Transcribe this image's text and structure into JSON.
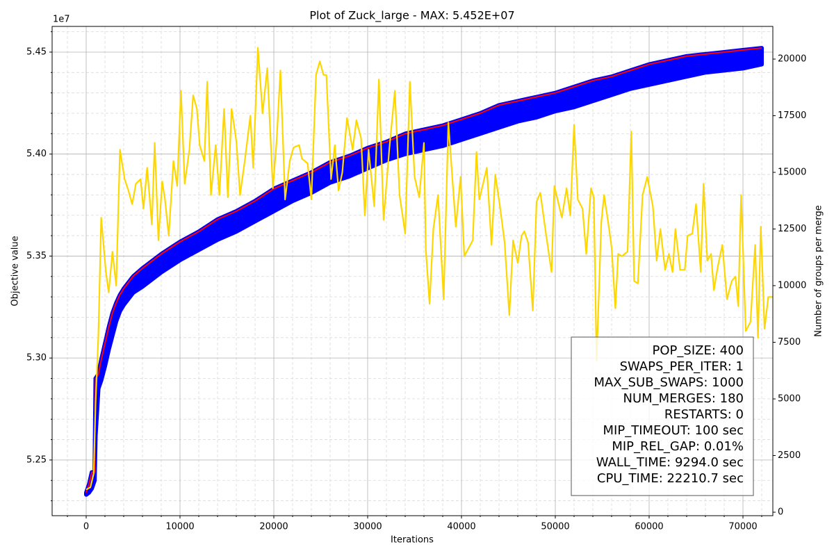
{
  "chart_data": {
    "type": "line",
    "title": "Plot of Zuck_large - MAX: 5.452E+07",
    "xlabel": "Iterations",
    "ylabel": "Objective value",
    "y2label": "Number of groups per merge",
    "y_offset_label": "1e7",
    "xlim": [
      -3630,
      73185
    ],
    "ylim": [
      5.2227,
      5.4626
    ],
    "y2lim": [
      -153,
      21442
    ],
    "xticks": [
      0,
      10000,
      20000,
      30000,
      40000,
      50000,
      60000,
      70000
    ],
    "yticks": [
      5.25,
      {
        "value": 5.3,
        "label": "5.30"
      },
      5.35,
      {
        "value": 5.4,
        "label": "5.40"
      },
      5.45
    ],
    "y2ticks": [
      0,
      2500,
      5000,
      7500,
      10000,
      12500,
      15000,
      17500,
      20000
    ],
    "xminorticks": [
      -2000,
      2000,
      4000,
      6000,
      8000,
      12000,
      14000,
      16000,
      18000,
      22000,
      24000,
      26000,
      28000,
      32000,
      34000,
      36000,
      38000,
      42000,
      44000,
      46000,
      48000,
      52000,
      54000,
      56000,
      58000,
      62000,
      64000,
      66000,
      68000,
      72000
    ],
    "yminorticks": [
      5.23,
      5.24,
      5.26,
      5.27,
      5.28,
      5.29,
      5.31,
      5.32,
      5.33,
      5.34,
      5.36,
      5.37,
      5.38,
      5.39,
      5.41,
      5.42,
      5.43,
      5.44,
      5.46
    ],
    "grid": true,
    "minor_grid": true,
    "series": [
      {
        "color": "#0000ff",
        "x": [
          0,
          300,
          600,
          900,
          1000,
          1300,
          1600,
          2000,
          2400,
          2800,
          3200,
          3600,
          4000,
          5000,
          6000,
          8000,
          10000,
          12000,
          14000,
          16000,
          18000,
          20000,
          22000,
          24000,
          26000,
          28000,
          30000,
          32000,
          34000,
          36000,
          38000,
          40000,
          42000,
          44000,
          46000,
          48000,
          50000,
          52000,
          54000,
          56000,
          58000,
          60000,
          62000,
          64000,
          66000,
          68000,
          70000,
          72000
        ],
        "values": [
          5.234,
          5.238,
          5.244,
          5.244,
          5.29,
          5.292,
          5.299,
          5.307,
          5.315,
          5.322,
          5.327,
          5.331,
          5.334,
          5.34,
          5.344,
          5.351,
          5.357,
          5.362,
          5.368,
          5.372,
          5.377,
          5.383,
          5.387,
          5.391,
          5.396,
          5.399,
          5.403,
          5.406,
          5.41,
          5.412,
          5.414,
          5.417,
          5.42,
          5.424,
          5.426,
          5.428,
          5.43,
          5.433,
          5.436,
          5.438,
          5.441,
          5.444,
          5.446,
          5.448,
          5.449,
          5.45,
          5.451,
          5.452
        ],
        "lower": [
          5.233,
          5.234,
          5.236,
          5.24,
          5.262,
          5.285,
          5.289,
          5.296,
          5.304,
          5.311,
          5.318,
          5.323,
          5.326,
          5.332,
          5.335,
          5.342,
          5.348,
          5.353,
          5.358,
          5.362,
          5.367,
          5.372,
          5.377,
          5.381,
          5.386,
          5.389,
          5.393,
          5.397,
          5.4,
          5.402,
          5.404,
          5.407,
          5.41,
          5.413,
          5.416,
          5.418,
          5.421,
          5.423,
          5.426,
          5.429,
          5.432,
          5.434,
          5.436,
          5.438,
          5.44,
          5.441,
          5.442,
          5.444
        ]
      },
      {
        "color": "#ff0000",
        "x": [
          0,
          300,
          600,
          900,
          1000,
          1300,
          1600,
          2000,
          2400,
          2800,
          3200,
          3600,
          4000,
          5000,
          6000,
          8000,
          10000,
          12000,
          14000,
          16000,
          18000,
          20000,
          22000,
          24000,
          26000,
          28000,
          30000,
          32000,
          34000,
          36000,
          38000,
          40000,
          42000,
          44000,
          46000,
          48000,
          50000,
          52000,
          54000,
          56000,
          58000,
          60000,
          62000,
          64000,
          66000,
          68000,
          70000,
          72000
        ],
        "values": [
          5.234,
          5.238,
          5.244,
          5.244,
          5.29,
          5.292,
          5.299,
          5.307,
          5.315,
          5.322,
          5.327,
          5.331,
          5.334,
          5.34,
          5.344,
          5.351,
          5.357,
          5.362,
          5.368,
          5.372,
          5.377,
          5.383,
          5.387,
          5.391,
          5.396,
          5.399,
          5.403,
          5.406,
          5.41,
          5.412,
          5.414,
          5.417,
          5.42,
          5.424,
          5.426,
          5.428,
          5.43,
          5.433,
          5.436,
          5.438,
          5.441,
          5.444,
          5.446,
          5.448,
          5.449,
          5.45,
          5.451,
          5.452
        ]
      },
      {
        "color": "#ffd700",
        "axis": "y2",
        "x": [
          0,
          450,
          800,
          1000,
          1300,
          1600,
          2100,
          2400,
          2800,
          3200,
          3600,
          4100,
          4500,
          4900,
          5300,
          5800,
          6100,
          6500,
          7000,
          7300,
          7700,
          8100,
          8400,
          8800,
          9300,
          9700,
          10100,
          10500,
          11000,
          11400,
          11800,
          12100,
          12600,
          12900,
          13300,
          13800,
          14200,
          14700,
          15100,
          15500,
          16000,
          16400,
          16900,
          17500,
          17800,
          18300,
          18800,
          19300,
          19900,
          20300,
          20700,
          21200,
          21700,
          22100,
          22700,
          23000,
          23600,
          24000,
          24500,
          24900,
          25300,
          25600,
          26100,
          26500,
          26900,
          27300,
          27800,
          28400,
          28800,
          29300,
          29700,
          30100,
          30700,
          31200,
          31700,
          32300,
          32900,
          33400,
          34000,
          34500,
          35000,
          35500,
          36000,
          36200,
          36600,
          37000,
          37500,
          38100,
          38600,
          39400,
          39900,
          40300,
          41200,
          41600,
          41900,
          42700,
          43200,
          43600,
          44100,
          44600,
          45100,
          45500,
          46000,
          46400,
          46700,
          47100,
          47600,
          48000,
          48400,
          49000,
          49600,
          49900,
          50700,
          51200,
          51600,
          52000,
          52400,
          52900,
          53300,
          53800,
          54100,
          54400,
          54900,
          55200,
          55700,
          56000,
          56400,
          56700,
          57100,
          57700,
          58100,
          58400,
          58800,
          59300,
          59800,
          60400,
          60800,
          61200,
          61700,
          62100,
          62500,
          62800,
          63300,
          63800,
          64100,
          64600,
          65000,
          65500,
          65800,
          66200,
          66600,
          66900,
          67300,
          67800,
          68300,
          68800,
          69200,
          69500,
          69800,
          70300,
          70800,
          71300,
          71600,
          71900,
          72300,
          72700,
          73200
        ],
        "values": [
          1000,
          1100,
          1700,
          4800,
          7800,
          13000,
          10600,
          9700,
          11500,
          10000,
          16000,
          14700,
          14200,
          13600,
          14500,
          14700,
          13400,
          15200,
          12700,
          16300,
          12000,
          14600,
          13800,
          12200,
          15500,
          14400,
          18600,
          14500,
          16000,
          18400,
          17800,
          16200,
          15500,
          19000,
          14000,
          16200,
          14000,
          17800,
          13900,
          17800,
          16400,
          14000,
          15500,
          17500,
          15200,
          20500,
          17600,
          19600,
          14300,
          16400,
          19500,
          13800,
          15500,
          16100,
          16200,
          15600,
          15400,
          13800,
          19300,
          19900,
          19300,
          19300,
          14700,
          16200,
          14200,
          15000,
          17400,
          16000,
          17300,
          16500,
          13100,
          16000,
          13500,
          19100,
          12900,
          16000,
          18600,
          14000,
          12300,
          19000,
          14800,
          13900,
          16300,
          11600,
          9200,
          12500,
          14000,
          9400,
          17200,
          12600,
          14800,
          11300,
          12000,
          15900,
          13800,
          15200,
          11800,
          14900,
          13500,
          11900,
          8700,
          12000,
          11000,
          12200,
          12400,
          11900,
          8900,
          13700,
          14100,
          12300,
          10600,
          14400,
          13000,
          14300,
          13100,
          17100,
          13800,
          13400,
          11400,
          14300,
          13900,
          6700,
          12800,
          14000,
          12600,
          11700,
          9000,
          11400,
          11300,
          11500,
          16800,
          10200,
          10100,
          14000,
          14800,
          13500,
          11100,
          12500,
          10700,
          11400,
          10600,
          12500,
          10700,
          10700,
          12200,
          12300,
          13600,
          10600,
          14500,
          11100,
          11400,
          9800,
          10800,
          11800,
          9400,
          10200,
          10400,
          9100,
          14000,
          8000,
          8400,
          11800,
          7700,
          12600,
          8100,
          9500,
          9500
        ]
      }
    ],
    "annotations": [
      "POP_SIZE: 400",
      "SWAPS_PER_ITER: 1",
      "MAX_SUB_SWAPS: 1000",
      "NUM_MERGES: 180",
      "RESTARTS: 0",
      "MIP_TIMEOUT: 100 sec",
      "MIP_REL_GAP: 0.01%",
      "WALL_TIME: 9294.0 sec",
      "CPU_TIME: 22210.7 sec"
    ]
  }
}
